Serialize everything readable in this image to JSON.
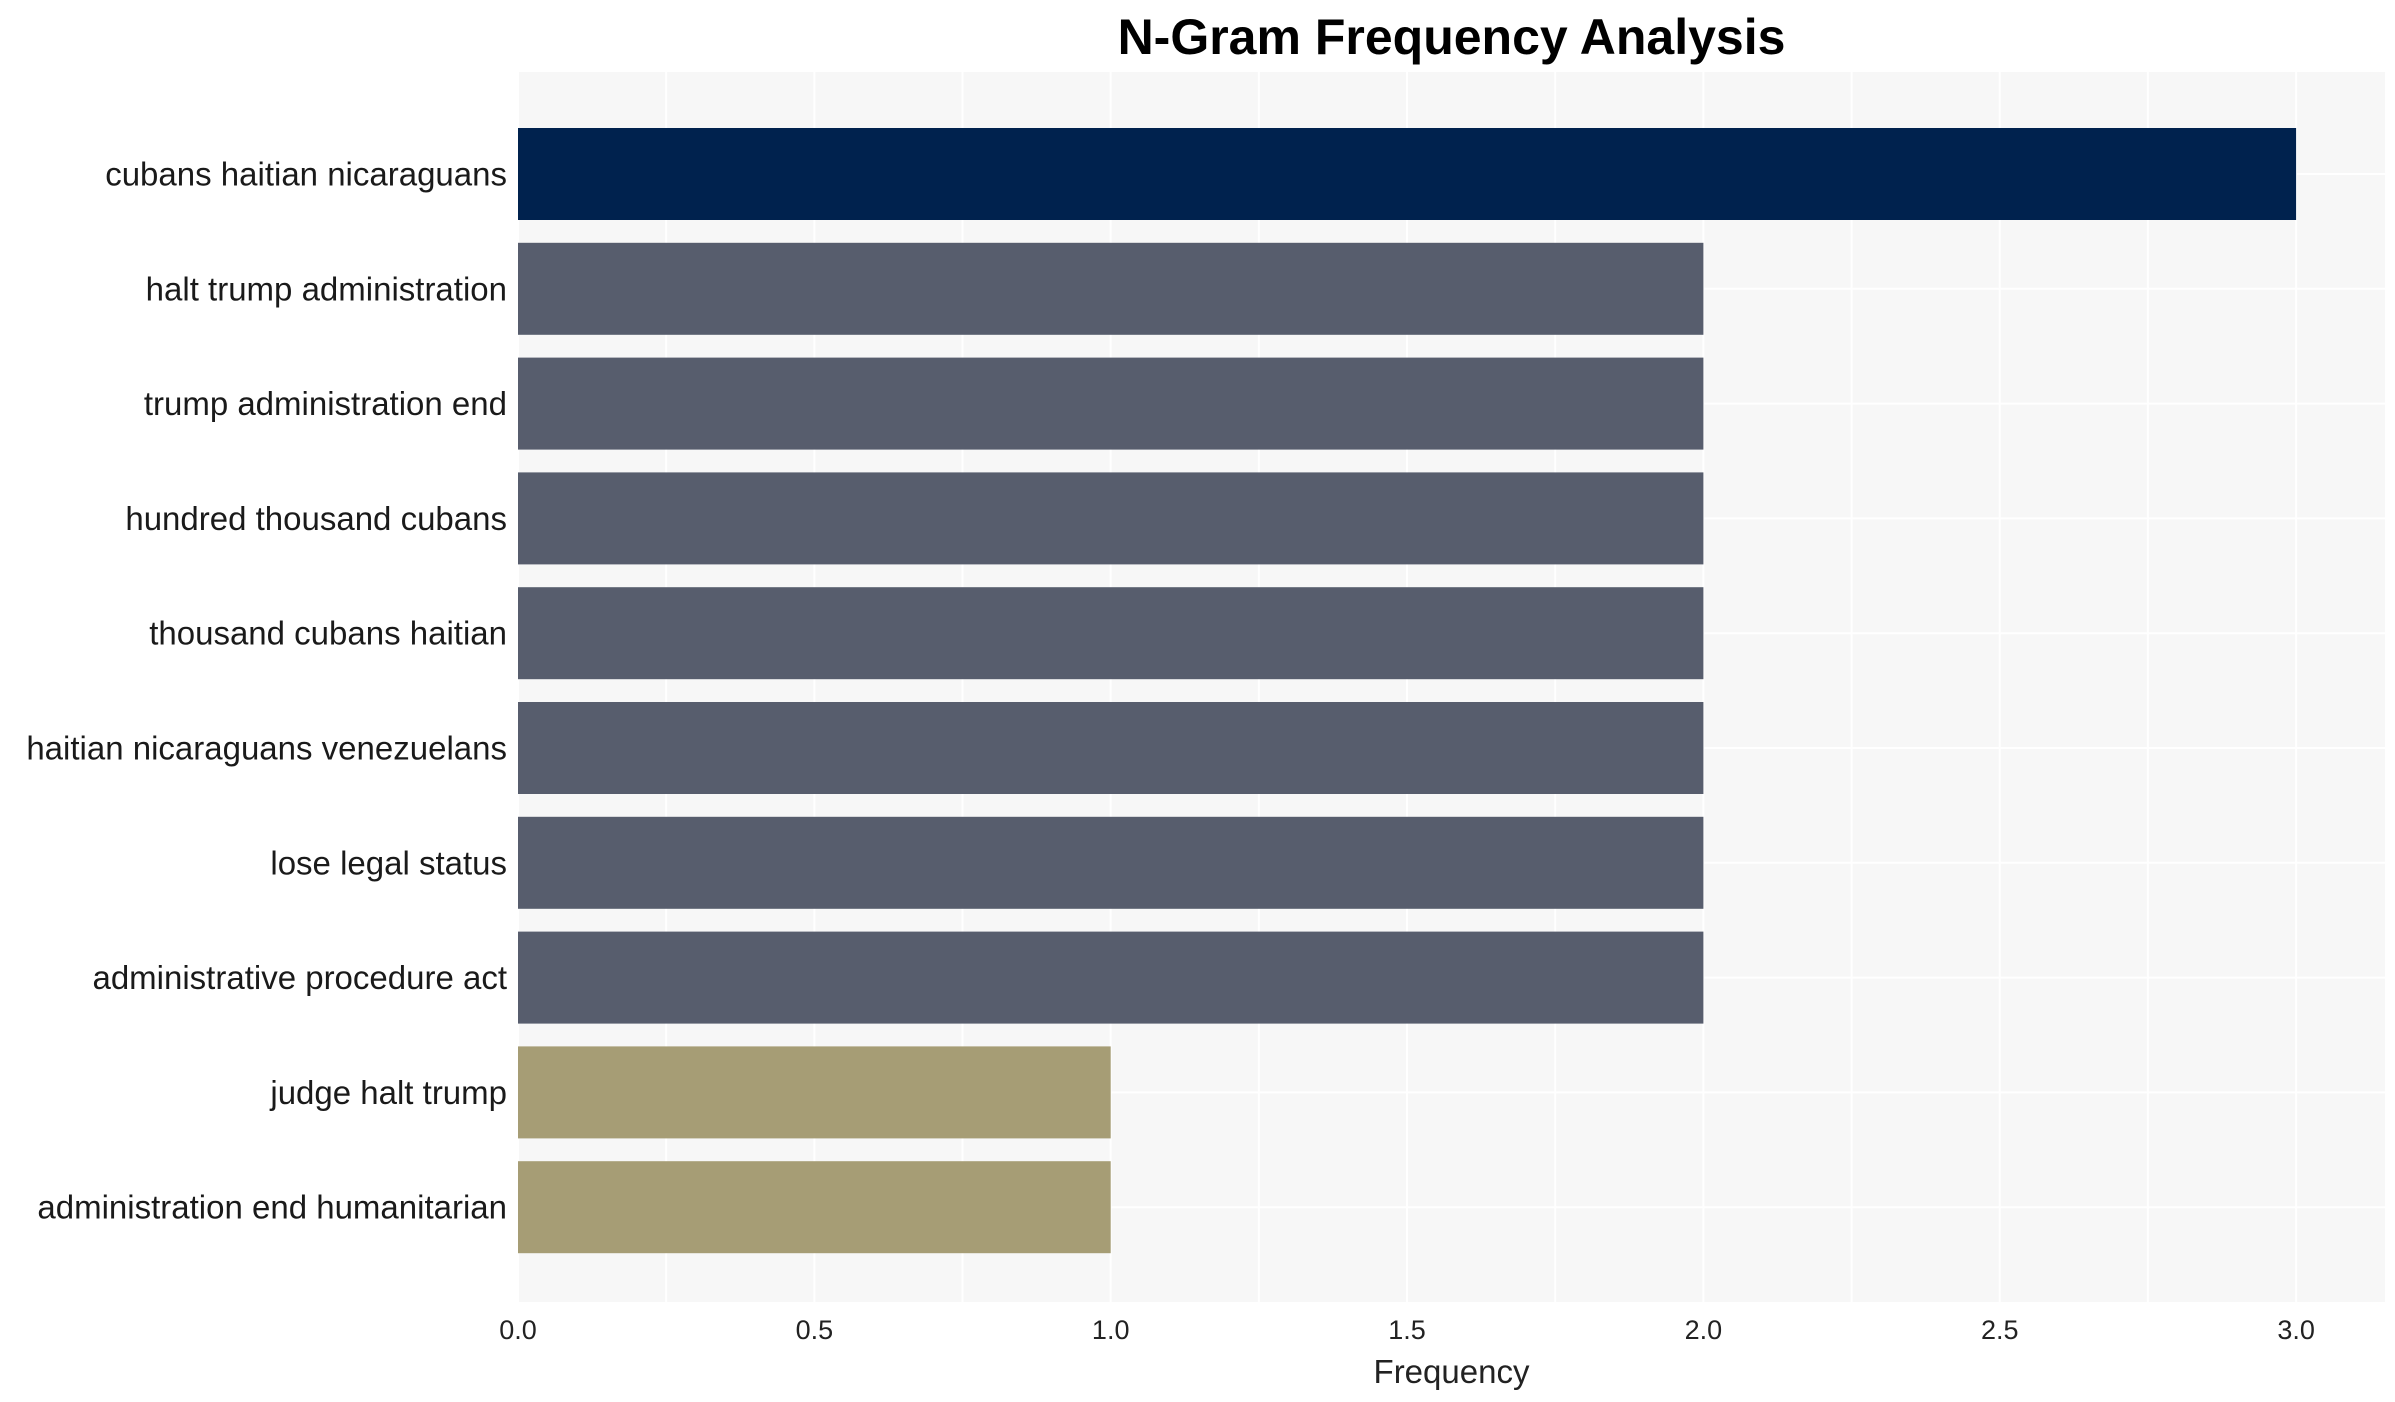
{
  "chart_data": {
    "type": "bar",
    "orientation": "horizontal",
    "title": "N-Gram Frequency Analysis",
    "xlabel": "Frequency",
    "ylabel": "",
    "categories": [
      "cubans haitian nicaraguans",
      "halt trump administration",
      "trump administration end",
      "hundred thousand cubans",
      "thousand cubans haitian",
      "haitian nicaraguans venezuelans",
      "lose legal status",
      "administrative procedure act",
      "judge halt trump",
      "administration end humanitarian"
    ],
    "values": [
      3,
      2,
      2,
      2,
      2,
      2,
      2,
      2,
      1,
      1
    ],
    "bar_colors": [
      "#00224e",
      "#575d6d",
      "#575d6d",
      "#575d6d",
      "#575d6d",
      "#575d6d",
      "#575d6d",
      "#575d6d",
      "#a69d75",
      "#a69d75"
    ],
    "xlim": [
      0,
      3.15
    ],
    "xticks": [
      0.0,
      0.5,
      1.0,
      1.5,
      2.0,
      2.5,
      3.0
    ],
    "xtick_labels": [
      "0.0",
      "0.5",
      "1.0",
      "1.5",
      "2.0",
      "2.5",
      "3.0"
    ],
    "grid": true,
    "plot_background": "#f7f7f7",
    "grid_color": "#ffffff",
    "legend": "none"
  }
}
